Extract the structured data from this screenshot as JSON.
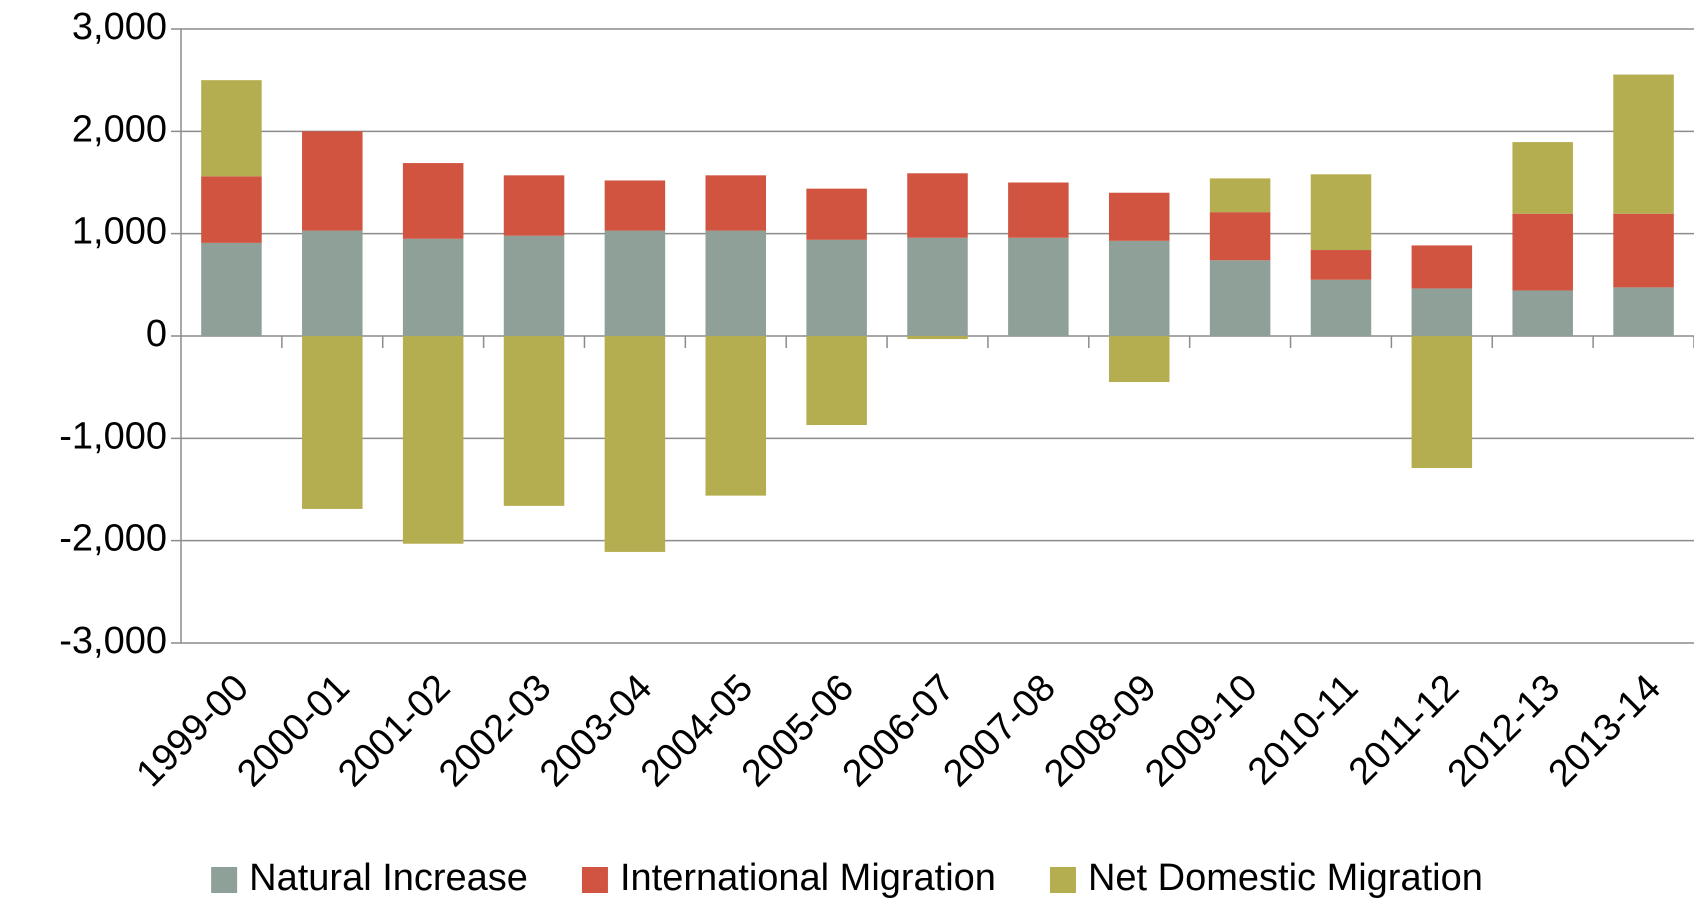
{
  "chart_data": {
    "type": "stacked-bar",
    "categories": [
      "1999-00",
      "2000-01",
      "2001-02",
      "2002-03",
      "2003-04",
      "2004-05",
      "2005-06",
      "2006-07",
      "2007-08",
      "2008-09",
      "2009-10",
      "2010-11",
      "2011-12",
      "2012-13",
      "2013-14"
    ],
    "series": [
      {
        "name": "Natural Increase",
        "color": "#8fa098",
        "values": [
          910,
          1030,
          950,
          980,
          1030,
          1030,
          940,
          960,
          960,
          930,
          740,
          550,
          465,
          445,
          475
        ]
      },
      {
        "name": "International Migration",
        "color": "#d05440",
        "values": [
          650,
          970,
          740,
          590,
          490,
          540,
          500,
          630,
          540,
          470,
          470,
          290,
          420,
          750,
          720
        ]
      },
      {
        "name": "Net Domestic Migration",
        "color": "#b5ae50",
        "values": [
          940,
          -1690,
          -2030,
          -1660,
          -2110,
          -1560,
          -870,
          -30,
          0,
          -450,
          330,
          740,
          -1290,
          700,
          1360
        ]
      }
    ],
    "ylim": [
      -3000,
      3000
    ],
    "yticks": [
      {
        "value": 3000,
        "label": "3,000"
      },
      {
        "value": 2000,
        "label": "2,000"
      },
      {
        "value": 1000,
        "label": "1,000"
      },
      0,
      {
        "value": -1000,
        "label": "-1,000"
      },
      {
        "value": -2000,
        "label": "-2,000"
      },
      {
        "value": -3000,
        "label": "-3,000"
      }
    ],
    "grid": true,
    "legend": "bottom"
  }
}
